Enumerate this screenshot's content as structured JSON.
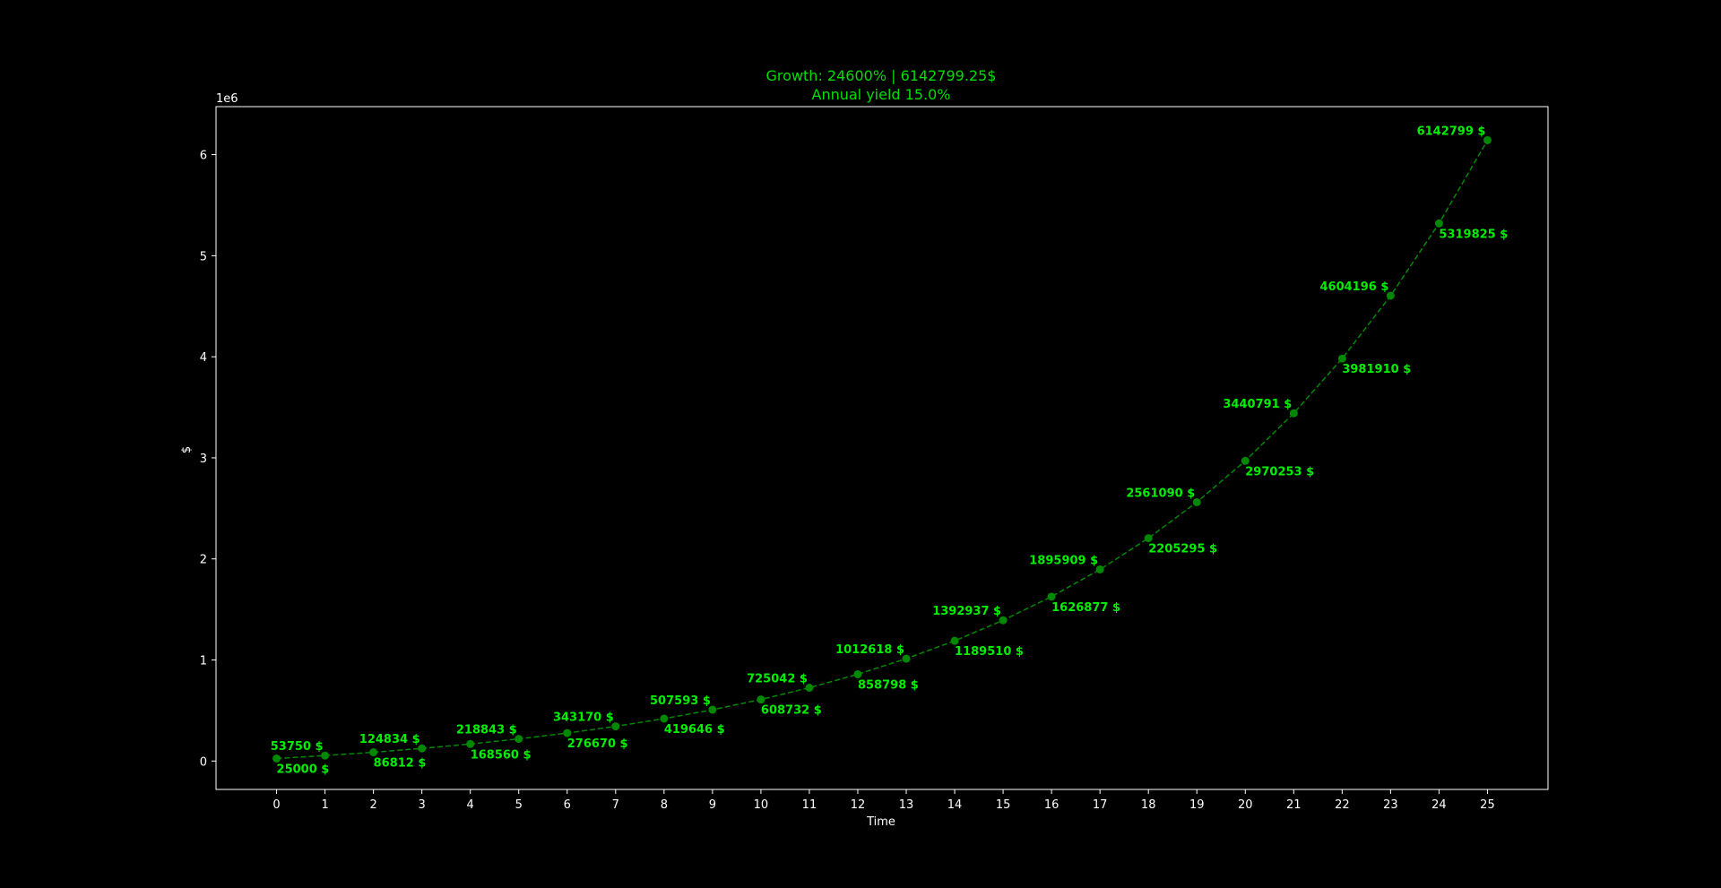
{
  "chart_data": {
    "type": "line",
    "title": "Growth: 24600% | 6142799.25$",
    "subtitle": "Annual yield 15.0%",
    "xlabel": "Time",
    "ylabel": "$",
    "y_offset_label": "1e6",
    "x": [
      0,
      1,
      2,
      3,
      4,
      5,
      6,
      7,
      8,
      9,
      10,
      11,
      12,
      13,
      14,
      15,
      16,
      17,
      18,
      19,
      20,
      21,
      22,
      23,
      24,
      25
    ],
    "y": [
      25000,
      53750,
      86812,
      124834,
      168560,
      218843,
      276670,
      343170,
      419646,
      507593,
      608732,
      725042,
      858798,
      1012618,
      1189510,
      1392937,
      1626877,
      1895909,
      2205295,
      2561090,
      2970253,
      3440791,
      3981910,
      4604196,
      5319825,
      6142799
    ],
    "point_labels": [
      "25000 $",
      "53750 $",
      "86812 $",
      "124834 $",
      "168560 $",
      "218843 $",
      "276670 $",
      "343170 $",
      "419646 $",
      "507593 $",
      "608732 $",
      "725042 $",
      "858798 $",
      "1012618 $",
      "1189510 $",
      "1392937 $",
      "1626877 $",
      "1895909 $",
      "2205295 $",
      "2561090 $",
      "2970253 $",
      "3440791 $",
      "3981910 $",
      "4604196 $",
      "5319825 $",
      "6142799 $"
    ],
    "x_ticks": [
      "0",
      "1",
      "2",
      "3",
      "4",
      "5",
      "6",
      "7",
      "8",
      "9",
      "10",
      "11",
      "12",
      "13",
      "14",
      "15",
      "16",
      "17",
      "18",
      "19",
      "20",
      "21",
      "22",
      "23",
      "24",
      "25"
    ],
    "y_ticks": [
      0,
      1,
      2,
      3,
      4,
      5,
      6
    ],
    "y_tick_labels": [
      "0",
      "1",
      "2",
      "3",
      "4",
      "5",
      "6"
    ],
    "xlim": [
      -1.25,
      26.25
    ],
    "ylim": [
      -281000,
      6475000
    ],
    "grid": false,
    "line_style": "dashed",
    "marker": "circle",
    "colors": {
      "background": "#000000",
      "line": "#008800",
      "marker": "#008800",
      "text": "#00dd00",
      "point_label": "#00ee00",
      "axes": "#ffffff"
    }
  }
}
